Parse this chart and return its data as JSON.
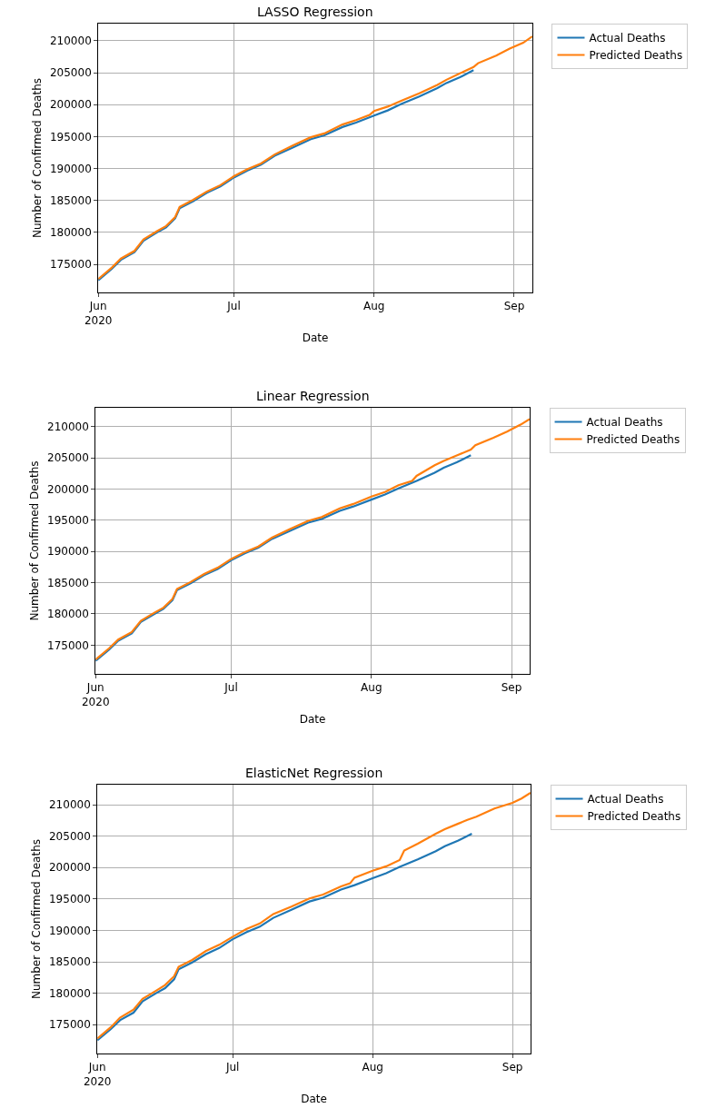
{
  "chart_data": [
    {
      "type": "line",
      "title": "LASSO Regression",
      "xlabel": "Date",
      "ylabel": "Number of Confirmed Deaths",
      "xlim": [
        "2020-06-01",
        "2020-09-05"
      ],
      "xticks": [
        {
          "value": "2020-06-01",
          "label": "Jun\n2020"
        },
        {
          "value": "2020-07-01",
          "label": "Jul"
        },
        {
          "value": "2020-08-01",
          "label": "Aug"
        },
        {
          "value": "2020-09-01",
          "label": "Sep"
        }
      ],
      "ylim": [
        170600,
        212700
      ],
      "yticks": [
        175000,
        180000,
        185000,
        190000,
        195000,
        200000,
        205000,
        210000
      ],
      "grid": true,
      "legend": "top right",
      "line_style": "solid",
      "series": [
        {
          "name": "Actual Deaths",
          "color": "#1f77b4",
          "x": [
            "2020-06-01",
            "2020-06-04",
            "2020-06-06",
            "2020-06-09",
            "2020-06-11",
            "2020-06-14",
            "2020-06-16",
            "2020-06-18",
            "2020-06-19",
            "2020-06-22",
            "2020-06-25",
            "2020-06-28",
            "2020-07-01",
            "2020-07-04",
            "2020-07-07",
            "2020-07-10",
            "2020-07-14",
            "2020-07-18",
            "2020-07-21",
            "2020-07-25",
            "2020-07-28",
            "2020-08-01",
            "2020-08-04",
            "2020-08-07",
            "2020-08-11",
            "2020-08-15",
            "2020-08-17",
            "2020-08-20",
            "2020-08-23"
          ],
          "values": [
            172500,
            174300,
            175700,
            176900,
            178700,
            180000,
            180800,
            182200,
            183800,
            184900,
            186200,
            187200,
            188600,
            189700,
            190600,
            192000,
            193300,
            194600,
            195200,
            196500,
            197200,
            198300,
            199100,
            200100,
            201300,
            202600,
            203400,
            204300,
            205400
          ]
        },
        {
          "name": "Predicted Deaths",
          "color": "#ff7f0e",
          "x": [
            "2020-06-01",
            "2020-06-04",
            "2020-06-06",
            "2020-06-09",
            "2020-06-11",
            "2020-06-14",
            "2020-06-16",
            "2020-06-18",
            "2020-06-19",
            "2020-06-22",
            "2020-06-25",
            "2020-06-28",
            "2020-07-01",
            "2020-07-04",
            "2020-07-07",
            "2020-07-10",
            "2020-07-14",
            "2020-07-18",
            "2020-07-21",
            "2020-07-25",
            "2020-07-28",
            "2020-07-31",
            "2020-08-01",
            "2020-08-04",
            "2020-08-07",
            "2020-08-11",
            "2020-08-15",
            "2020-08-17",
            "2020-08-20",
            "2020-08-23",
            "2020-08-24",
            "2020-08-28",
            "2020-08-31",
            "2020-09-03",
            "2020-09-05"
          ],
          "values": [
            172700,
            174500,
            175900,
            177100,
            178900,
            180200,
            181000,
            182400,
            184000,
            185100,
            186400,
            187400,
            188800,
            189900,
            190800,
            192200,
            193600,
            194900,
            195500,
            196900,
            197600,
            198400,
            199000,
            199700,
            200600,
            201800,
            203100,
            203900,
            204900,
            205900,
            206500,
            207700,
            208800,
            209700,
            210700
          ]
        }
      ]
    },
    {
      "type": "line",
      "title": "Linear Regression",
      "xlabel": "Date",
      "ylabel": "Number of Confirmed Deaths",
      "xlim": [
        "2020-06-01",
        "2020-09-05"
      ],
      "xticks": [
        {
          "value": "2020-06-01",
          "label": "Jun\n2020"
        },
        {
          "value": "2020-07-01",
          "label": "Jul"
        },
        {
          "value": "2020-08-01",
          "label": "Aug"
        },
        {
          "value": "2020-09-01",
          "label": "Sep"
        }
      ],
      "ylim": [
        170400,
        213000
      ],
      "yticks": [
        175000,
        180000,
        185000,
        190000,
        195000,
        200000,
        205000,
        210000
      ],
      "grid": true,
      "legend": "top right",
      "line_style": "solid",
      "series": [
        {
          "name": "Actual Deaths",
          "color": "#1f77b4",
          "x": [
            "2020-06-01",
            "2020-06-04",
            "2020-06-06",
            "2020-06-09",
            "2020-06-11",
            "2020-06-14",
            "2020-06-16",
            "2020-06-18",
            "2020-06-19",
            "2020-06-22",
            "2020-06-25",
            "2020-06-28",
            "2020-07-01",
            "2020-07-04",
            "2020-07-07",
            "2020-07-10",
            "2020-07-14",
            "2020-07-18",
            "2020-07-21",
            "2020-07-25",
            "2020-07-28",
            "2020-08-01",
            "2020-08-04",
            "2020-08-07",
            "2020-08-11",
            "2020-08-15",
            "2020-08-17",
            "2020-08-20",
            "2020-08-23"
          ],
          "values": [
            172500,
            174300,
            175700,
            176900,
            178700,
            180000,
            180800,
            182200,
            183800,
            184900,
            186200,
            187200,
            188600,
            189700,
            190600,
            192000,
            193300,
            194600,
            195200,
            196500,
            197200,
            198300,
            199100,
            200100,
            201300,
            202600,
            203400,
            204300,
            205400
          ]
        },
        {
          "name": "Predicted Deaths",
          "color": "#ff7f0e",
          "x": [
            "2020-06-01",
            "2020-06-04",
            "2020-06-06",
            "2020-06-09",
            "2020-06-11",
            "2020-06-14",
            "2020-06-16",
            "2020-06-18",
            "2020-06-19",
            "2020-06-22",
            "2020-06-25",
            "2020-06-28",
            "2020-07-01",
            "2020-07-04",
            "2020-07-07",
            "2020-07-10",
            "2020-07-14",
            "2020-07-18",
            "2020-07-21",
            "2020-07-25",
            "2020-07-28",
            "2020-08-01",
            "2020-08-04",
            "2020-08-07",
            "2020-08-10",
            "2020-08-11",
            "2020-08-15",
            "2020-08-17",
            "2020-08-20",
            "2020-08-23",
            "2020-08-24",
            "2020-08-28",
            "2020-08-31",
            "2020-09-03",
            "2020-09-05"
          ],
          "values": [
            172700,
            174500,
            175900,
            177100,
            178900,
            180200,
            181000,
            182400,
            184000,
            185100,
            186400,
            187400,
            188800,
            189900,
            190800,
            192200,
            193600,
            194900,
            195500,
            196900,
            197600,
            198800,
            199500,
            200600,
            201300,
            202100,
            203800,
            204500,
            205400,
            206300,
            207000,
            208200,
            209200,
            210300,
            211200
          ]
        }
      ]
    },
    {
      "type": "line",
      "title": "ElasticNet Regression",
      "xlabel": "Date",
      "ylabel": "Number of Confirmed Deaths",
      "xlim": [
        "2020-06-01",
        "2020-09-05"
      ],
      "xticks": [
        {
          "value": "2020-06-01",
          "label": "Jun\n2020"
        },
        {
          "value": "2020-07-01",
          "label": "Jul"
        },
        {
          "value": "2020-08-01",
          "label": "Aug"
        },
        {
          "value": "2020-09-01",
          "label": "Sep"
        }
      ],
      "ylim": [
        170400,
        213200
      ],
      "yticks": [
        175000,
        180000,
        185000,
        190000,
        195000,
        200000,
        205000,
        210000
      ],
      "grid": true,
      "legend": "top right",
      "line_style": "solid",
      "series": [
        {
          "name": "Actual Deaths",
          "color": "#1f77b4",
          "x": [
            "2020-06-01",
            "2020-06-04",
            "2020-06-06",
            "2020-06-09",
            "2020-06-11",
            "2020-06-14",
            "2020-06-16",
            "2020-06-18",
            "2020-06-19",
            "2020-06-22",
            "2020-06-25",
            "2020-06-28",
            "2020-07-01",
            "2020-07-04",
            "2020-07-07",
            "2020-07-10",
            "2020-07-14",
            "2020-07-18",
            "2020-07-21",
            "2020-07-25",
            "2020-07-28",
            "2020-08-01",
            "2020-08-04",
            "2020-08-07",
            "2020-08-11",
            "2020-08-15",
            "2020-08-17",
            "2020-08-20",
            "2020-08-23"
          ],
          "values": [
            172500,
            174300,
            175700,
            176900,
            178700,
            180000,
            180800,
            182200,
            183800,
            184900,
            186200,
            187200,
            188600,
            189700,
            190600,
            192000,
            193300,
            194600,
            195200,
            196500,
            197200,
            198300,
            199100,
            200100,
            201300,
            202600,
            203400,
            204300,
            205400
          ]
        },
        {
          "name": "Predicted Deaths",
          "color": "#ff7f0e",
          "x": [
            "2020-06-01",
            "2020-06-04",
            "2020-06-06",
            "2020-06-09",
            "2020-06-11",
            "2020-06-14",
            "2020-06-16",
            "2020-06-18",
            "2020-06-19",
            "2020-06-22",
            "2020-06-25",
            "2020-06-28",
            "2020-07-01",
            "2020-07-04",
            "2020-07-07",
            "2020-07-10",
            "2020-07-14",
            "2020-07-18",
            "2020-07-21",
            "2020-07-25",
            "2020-07-27",
            "2020-07-28",
            "2020-08-01",
            "2020-08-04",
            "2020-08-07",
            "2020-08-08",
            "2020-08-11",
            "2020-08-15",
            "2020-08-17",
            "2020-08-20",
            "2020-08-22",
            "2020-08-24",
            "2020-08-28",
            "2020-09-01",
            "2020-09-03",
            "2020-09-05"
          ],
          "values": [
            172800,
            174600,
            176100,
            177400,
            179100,
            180400,
            181300,
            182700,
            184200,
            185300,
            186700,
            187700,
            189000,
            190200,
            191100,
            192600,
            193800,
            195100,
            195700,
            197000,
            197500,
            198400,
            199500,
            200200,
            201200,
            202700,
            203800,
            205400,
            206100,
            207000,
            207600,
            208100,
            209400,
            210300,
            211000,
            211900
          ]
        }
      ]
    }
  ]
}
